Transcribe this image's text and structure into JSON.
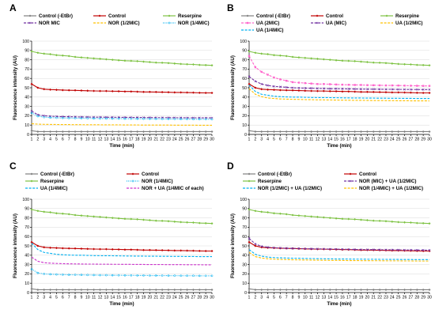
{
  "figure": {
    "panels_order": [
      "A",
      "B",
      "C",
      "D"
    ]
  },
  "colors": {
    "control_etbr": "#7f7f7f",
    "control": "#c00000",
    "reserpine": "#7dc242",
    "nor_mic": "#7030a0",
    "nor_half": "#ffc000",
    "nor_quarter": "#00b0f0",
    "ua_2mic": "#ff66cc",
    "ua_mic": "#7030a0",
    "ua_half": "#ffc000",
    "ua_quarter": "#00b0f0",
    "nor_ua_quarter": "#cc33cc",
    "nor_mic_ua_half": "#7030a0",
    "nor_half_ua_half": "#00b0f0",
    "nor_quarter_ua_half": "#ffc000"
  },
  "chart_data": [
    {
      "type": "line",
      "panel_letter": "A",
      "xlabel": "Time (min)",
      "ylabel": "Fluorescence intensity (AU)",
      "xlim": [
        1,
        30
      ],
      "ylim": [
        0,
        100
      ],
      "yticks": [
        0,
        10,
        20,
        30,
        40,
        50,
        60,
        70,
        80,
        90,
        100
      ],
      "grid": "horizontal",
      "legend_placement": "top",
      "legend_columns": 3,
      "series": [
        {
          "name": "Control (-EtBr)",
          "color": "#7f7f7f",
          "style": "solid",
          "marker": "diamond",
          "values": [
            4,
            3,
            3,
            3,
            3,
            3,
            3,
            3,
            3,
            3,
            3,
            3,
            3,
            3,
            3,
            3,
            3,
            3,
            3,
            3,
            3,
            3,
            3,
            3,
            3,
            3,
            3,
            3,
            3,
            3
          ]
        },
        {
          "name": "Control",
          "color": "#c00000",
          "style": "solid",
          "marker": "diamond",
          "values": [
            54,
            50,
            48.5,
            48,
            47.8,
            47.5,
            47.3,
            47.2,
            47,
            46.8,
            46.6,
            46.5,
            46.5,
            46.3,
            46.2,
            46,
            46,
            45.8,
            45.5,
            45.5,
            45.4,
            45.3,
            45.2,
            45,
            45,
            44.9,
            44.8,
            44.6,
            44.5,
            44.5
          ]
        },
        {
          "name": "Reserpine",
          "color": "#7dc242",
          "style": "solid",
          "marker": "diamond",
          "values": [
            89,
            87.5,
            86.5,
            86,
            85,
            84.5,
            84,
            83,
            82.5,
            82,
            81.5,
            81,
            80.5,
            80,
            79.5,
            79,
            78.8,
            78.5,
            78,
            77.5,
            77,
            76.8,
            76.5,
            76,
            75.5,
            75.2,
            75,
            74.5,
            74.3,
            74
          ]
        },
        {
          "name": "NOR MIC",
          "color": "#7030a0",
          "style": "dash",
          "marker": "x",
          "values": [
            25,
            21,
            20,
            19.5,
            19.2,
            19,
            19,
            18.8,
            18.7,
            18.6,
            18.5,
            18.5,
            18.4,
            18.4,
            18.3,
            18.3,
            18.2,
            18.2,
            18.1,
            18.1,
            18,
            18,
            18,
            17.9,
            17.9,
            17.8,
            17.8,
            17.8,
            17.7,
            17.7
          ]
        },
        {
          "name": "NOR (1/2MIC)",
          "color": "#ffc000",
          "style": "dash",
          "marker": "none",
          "values": [
            11.5,
            11,
            10.8,
            10.7,
            10.6,
            10.5,
            10.5,
            10.4,
            10.4,
            10.3,
            10.3,
            10.3,
            10.2,
            10.2,
            10.2,
            10.1,
            10.1,
            10.1,
            10,
            10,
            10,
            10,
            10,
            9.9,
            9.9,
            9.9,
            9.9,
            9.8,
            9.8,
            9.8
          ]
        },
        {
          "name": "NOR (1/4MIC)",
          "color": "#00b0f0",
          "style": "dot",
          "marker": "circle",
          "values": [
            23,
            19.5,
            18.5,
            18,
            17.8,
            17.6,
            17.5,
            17.4,
            17.3,
            17.2,
            17.1,
            17,
            17,
            16.9,
            16.9,
            16.8,
            16.8,
            16.7,
            16.7,
            16.6,
            16.6,
            16.5,
            16.5,
            16.5,
            16.4,
            16.4,
            16.3,
            16.3,
            16.3,
            16.2
          ]
        }
      ]
    },
    {
      "type": "line",
      "panel_letter": "B",
      "xlabel": "Time (min)",
      "ylabel": "Fluorescence intensity (AU)",
      "xlim": [
        1,
        30
      ],
      "ylim": [
        0,
        100
      ],
      "yticks": [
        0,
        10,
        20,
        30,
        40,
        50,
        60,
        70,
        80,
        90,
        100
      ],
      "grid": "horizontal",
      "legend_placement": "top",
      "legend_columns": 3,
      "series": [
        {
          "name": "Control (-EtBr)",
          "color": "#7f7f7f",
          "style": "solid",
          "marker": "diamond",
          "values": [
            4,
            3,
            3,
            3,
            3,
            3,
            3,
            3,
            3,
            3,
            3,
            3,
            3,
            3,
            3,
            3,
            3,
            3,
            3,
            3,
            3,
            3,
            3,
            3,
            3,
            3,
            3,
            3,
            3,
            3
          ]
        },
        {
          "name": "Control",
          "color": "#c00000",
          "style": "solid",
          "marker": "diamond",
          "values": [
            54,
            50,
            48.5,
            48,
            47.8,
            47.5,
            47.3,
            47.2,
            47,
            46.8,
            46.6,
            46.5,
            46.5,
            46.3,
            46.2,
            46,
            46,
            45.8,
            45.5,
            45.5,
            45.4,
            45.3,
            45.2,
            45,
            45,
            44.9,
            44.8,
            44.6,
            44.5,
            44.5
          ]
        },
        {
          "name": "Reserpine",
          "color": "#7dc242",
          "style": "solid",
          "marker": "diamond",
          "values": [
            89,
            87.5,
            86.5,
            86,
            85,
            84.5,
            84,
            83,
            82.5,
            82,
            81.5,
            81,
            80.5,
            80,
            79.5,
            79,
            78.8,
            78.5,
            78,
            77.5,
            77,
            76.8,
            76.5,
            76,
            75.5,
            75.2,
            75,
            74.5,
            74.3,
            74
          ]
        },
        {
          "name": "UA (2MIC)",
          "color": "#ff66cc",
          "style": "dash",
          "marker": "square",
          "values": [
            84,
            72,
            67,
            64,
            61,
            59,
            57.5,
            56,
            55.5,
            55,
            54.5,
            54,
            54,
            53.8,
            53.5,
            53.3,
            53.2,
            53,
            53,
            52.8,
            52.7,
            52.6,
            52.5,
            52.5,
            52.4,
            52.3,
            52.2,
            52.1,
            52,
            52
          ]
        },
        {
          "name": "UA (MIC)",
          "color": "#7030a0",
          "style": "dash",
          "marker": "x",
          "values": [
            62,
            57,
            54,
            52.5,
            51.5,
            51,
            50.5,
            50,
            49.8,
            49.6,
            49.5,
            49.3,
            49.2,
            49,
            49,
            48.9,
            48.8,
            48.7,
            48.6,
            48.5,
            48.5,
            48.4,
            48.3,
            48.3,
            48.2,
            48.2,
            48.1,
            48.1,
            48,
            48
          ]
        },
        {
          "name": "UA (1/2MIC)",
          "color": "#ffc000",
          "style": "dash",
          "marker": "none",
          "values": [
            49,
            43,
            40.5,
            39,
            38.5,
            38,
            37.8,
            37.6,
            37.5,
            37.3,
            37.2,
            37,
            37,
            36.9,
            36.8,
            36.7,
            36.6,
            36.5,
            36.5,
            36.4,
            36.3,
            36.3,
            36.2,
            36.2,
            36.1,
            36.1,
            36,
            36,
            36,
            35.9
          ]
        },
        {
          "name": "UA (1/4MIC)",
          "color": "#00b0f0",
          "style": "dash",
          "marker": "none",
          "values": [
            53,
            46,
            43,
            42,
            41,
            40.5,
            40.2,
            40,
            40,
            39.8,
            39.6,
            39.5,
            39.5,
            39.4,
            39.3,
            39.2,
            39.1,
            39,
            39,
            38.9,
            38.9,
            38.8,
            38.8,
            38.7,
            38.7,
            38.6,
            38.6,
            38.5,
            38.5,
            38.5
          ]
        }
      ]
    },
    {
      "type": "line",
      "panel_letter": "C",
      "xlabel": "Time (min)",
      "ylabel": "Fluorescence intensity (AU)",
      "xlim": [
        1,
        30
      ],
      "ylim": [
        0,
        100
      ],
      "yticks": [
        0,
        10,
        20,
        30,
        40,
        50,
        60,
        70,
        80,
        90,
        100
      ],
      "grid": "horizontal",
      "legend_placement": "top",
      "legend_columns": 2,
      "series": [
        {
          "name": "Control (-EtBr)",
          "color": "#7f7f7f",
          "style": "solid",
          "marker": "diamond",
          "values": [
            4,
            3,
            3,
            3,
            3,
            3,
            3,
            3,
            3,
            3,
            3,
            3,
            3,
            3,
            3,
            3,
            3,
            3,
            3,
            3,
            3,
            3,
            3,
            3,
            3,
            3,
            3,
            3,
            3,
            3
          ]
        },
        {
          "name": "Control",
          "color": "#c00000",
          "style": "solid",
          "marker": "diamond",
          "values": [
            54,
            50,
            48.5,
            48,
            47.8,
            47.5,
            47.3,
            47.2,
            47,
            46.8,
            46.6,
            46.5,
            46.5,
            46.3,
            46.2,
            46,
            46,
            45.8,
            45.5,
            45.5,
            45.4,
            45.3,
            45.2,
            45,
            45,
            44.9,
            44.8,
            44.6,
            44.5,
            44.5
          ]
        },
        {
          "name": "Reserpine",
          "color": "#7dc242",
          "style": "solid",
          "marker": "diamond",
          "values": [
            89,
            87.5,
            86.5,
            86,
            85,
            84.5,
            84,
            83,
            82.5,
            82,
            81.5,
            81,
            80.5,
            80,
            79.5,
            79,
            78.8,
            78.5,
            78,
            77.5,
            77,
            76.8,
            76.5,
            76,
            75.5,
            75.2,
            75,
            74.5,
            74.3,
            74
          ]
        },
        {
          "name": "NOR (1/4MIC)",
          "color": "#00b0f0",
          "style": "dot",
          "marker": "circle",
          "values": [
            25,
            21,
            20,
            19.6,
            19.4,
            19.2,
            19,
            19,
            18.9,
            18.8,
            18.7,
            18.6,
            18.6,
            18.5,
            18.5,
            18.4,
            18.4,
            18.3,
            18.3,
            18.2,
            18.2,
            18.2,
            18.1,
            18.1,
            18,
            18,
            18,
            17.9,
            17.9,
            17.9
          ]
        },
        {
          "name": "UA (1/4MIC)",
          "color": "#00b0f0",
          "style": "dash",
          "marker": "none",
          "values": [
            53,
            46,
            43,
            42,
            41,
            40.5,
            40.2,
            40,
            40,
            39.8,
            39.6,
            39.5,
            39.5,
            39.4,
            39.3,
            39.2,
            39.1,
            39,
            39,
            38.9,
            38.9,
            38.8,
            38.8,
            38.7,
            38.7,
            38.6,
            38.6,
            38.5,
            38.5,
            38.5
          ]
        },
        {
          "name": "NOR + UA (1/4MIC of each)",
          "color": "#cc33cc",
          "style": "dash",
          "marker": "none",
          "values": [
            38,
            33.5,
            32,
            31.5,
            31.2,
            31,
            30.8,
            30.7,
            30.6,
            30.5,
            30.5,
            30.4,
            30.4,
            30.3,
            30.3,
            30.2,
            30.2,
            30.1,
            30.1,
            30,
            30,
            30,
            29.9,
            29.9,
            29.9,
            29.8,
            29.8,
            29.8,
            29.7,
            29.7
          ]
        }
      ]
    },
    {
      "type": "line",
      "panel_letter": "D",
      "xlabel": "Time (min)",
      "ylabel": "Fluorescence intensity (AU)",
      "xlim": [
        1,
        30
      ],
      "ylim": [
        0,
        100
      ],
      "yticks": [
        0,
        10,
        20,
        30,
        40,
        50,
        60,
        70,
        80,
        90,
        100
      ],
      "grid": "horizontal",
      "legend_placement": "top",
      "legend_columns": 2,
      "series": [
        {
          "name": "Control (-EtBr)",
          "color": "#7f7f7f",
          "style": "solid",
          "marker": "diamond",
          "values": [
            4,
            3,
            3,
            3,
            3,
            3,
            3,
            3,
            3,
            3,
            3,
            3,
            3,
            3,
            3,
            3,
            3,
            3,
            3,
            3,
            3,
            3,
            3,
            3,
            3,
            3,
            3,
            3,
            3,
            3
          ]
        },
        {
          "name": "Control",
          "color": "#c00000",
          "style": "solid",
          "marker": "diamond",
          "values": [
            54,
            50,
            48.5,
            48,
            47.8,
            47.5,
            47.3,
            47.2,
            47,
            46.8,
            46.6,
            46.5,
            46.5,
            46.3,
            46.2,
            46,
            46,
            45.8,
            45.5,
            45.5,
            45.4,
            45.3,
            45.2,
            45,
            45,
            44.9,
            44.8,
            44.6,
            44.5,
            44.5
          ]
        },
        {
          "name": "Reserpine",
          "color": "#7dc242",
          "style": "solid",
          "marker": "diamond",
          "values": [
            89,
            87.5,
            86.5,
            86,
            85,
            84.5,
            84,
            83,
            82.5,
            82,
            81.5,
            81,
            80.5,
            80,
            79.5,
            79,
            78.8,
            78.5,
            78,
            77.5,
            77,
            76.8,
            76.5,
            76,
            75.5,
            75.2,
            75,
            74.5,
            74.3,
            74
          ]
        },
        {
          "name": "NOR (MIC) + UA (1/2MIC)",
          "color": "#7030a0",
          "style": "dash",
          "marker": "x",
          "values": [
            58,
            52,
            49.5,
            48.5,
            48,
            47.7,
            47.5,
            47.3,
            47.2,
            47,
            46.9,
            46.8,
            46.7,
            46.6,
            46.5,
            46.4,
            46.3,
            46.2,
            46.1,
            46,
            46,
            45.9,
            45.8,
            45.8,
            45.7,
            45.6,
            45.6,
            45.5,
            45.5,
            45.4
          ]
        },
        {
          "name": "NOR (1/2MIC) + UA (1/2MIC)",
          "color": "#00b0f0",
          "style": "dash",
          "marker": "none",
          "values": [
            46,
            41,
            39,
            38,
            37.5,
            37.2,
            37,
            36.8,
            36.7,
            36.5,
            36.4,
            36.3,
            36.2,
            36.1,
            36,
            36,
            35.9,
            35.8,
            35.8,
            35.7,
            35.7,
            35.6,
            35.6,
            35.5,
            35.5,
            35.4,
            35.4,
            35.3,
            35.3,
            35.3
          ]
        },
        {
          "name": "NOR (1/4MIC) + UA (1/2MIC)",
          "color": "#ffc000",
          "style": "dash",
          "marker": "none",
          "values": [
            43,
            38.5,
            37,
            36.2,
            35.8,
            35.5,
            35.3,
            35.1,
            35,
            34.9,
            34.8,
            34.7,
            34.6,
            34.5,
            34.5,
            34.4,
            34.3,
            34.3,
            34.2,
            34.2,
            34.1,
            34.1,
            34,
            34,
            34,
            33.9,
            33.9,
            33.8,
            33.8,
            33.8
          ]
        }
      ]
    }
  ]
}
